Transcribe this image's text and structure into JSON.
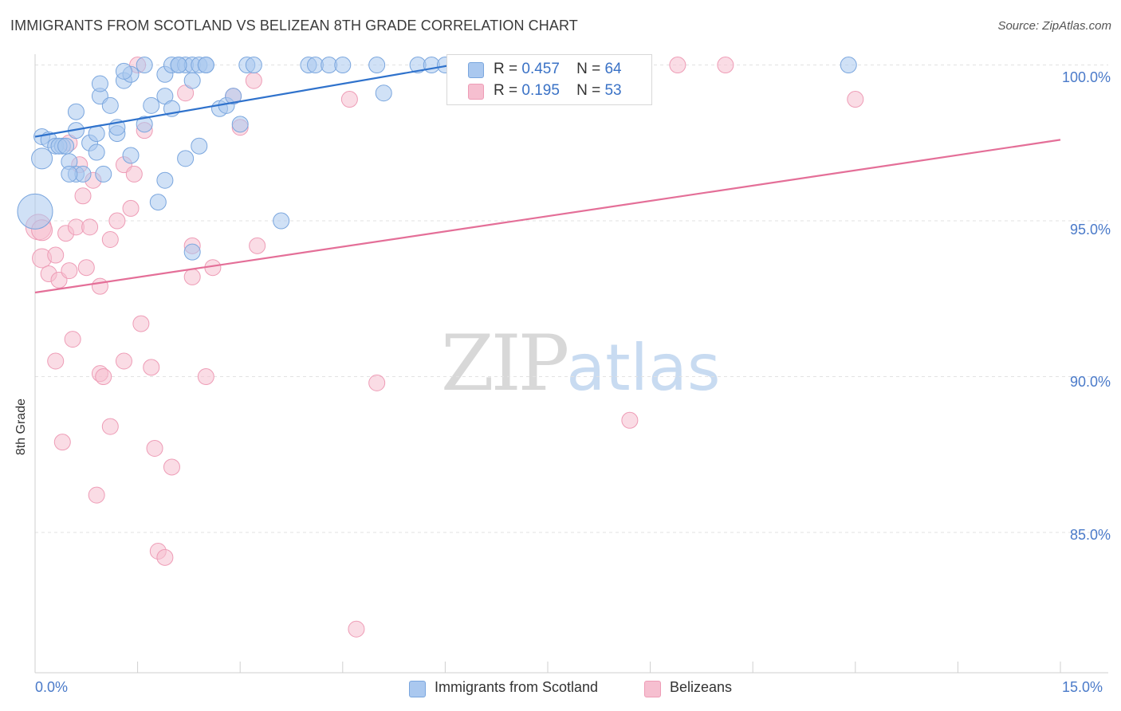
{
  "header": {
    "title": "IMMIGRANTS FROM SCOTLAND VS BELIZEAN 8TH GRADE CORRELATION CHART",
    "source": "Source: ZipAtlas.com"
  },
  "watermark": {
    "zip": "ZIP",
    "atlas": "atlas"
  },
  "colors": {
    "blue_fill": "#aac8ef",
    "blue_stroke": "#7aa6de",
    "blue_line": "#2f72cc",
    "pink_fill": "#f6bfd0",
    "pink_stroke": "#ee9cb6",
    "pink_line": "#e46f98",
    "tick_text": "#4a7ac9",
    "grid": "#e2e2e2"
  },
  "legend": {
    "rows": [
      {
        "r_label": "R =",
        "r_value": "0.457",
        "n_label": "N =",
        "n_value": "64"
      },
      {
        "r_label": "R =",
        "r_value": "0.195",
        "n_label": "N =",
        "n_value": "53"
      }
    ]
  },
  "bottom_legend": {
    "items": [
      {
        "label": "Immigrants from Scotland"
      },
      {
        "label": "Belizeans"
      }
    ]
  },
  "chart_data": {
    "type": "scatter",
    "title": "IMMIGRANTS FROM SCOTLAND VS BELIZEAN 8TH GRADE CORRELATION CHART",
    "xlabel": "",
    "ylabel": "8th Grade",
    "xlim": [
      0,
      15
    ],
    "ylim": [
      80.5,
      100.5
    ],
    "x_tick_labels": [
      "0.0%",
      "15.0%"
    ],
    "y_ticks": [
      100,
      95,
      90,
      85
    ],
    "y_tick_labels": [
      "100.0%",
      "95.0%",
      "90.0%",
      "85.0%"
    ],
    "grid": true,
    "series": [
      {
        "name": "Immigrants from Scotland",
        "R": 0.457,
        "N": 64,
        "trend": {
          "x": [
            0,
            6.1
          ],
          "y": [
            97.7,
            100
          ]
        },
        "points": [
          [
            0.1,
            97.7
          ],
          [
            0.2,
            97.6
          ],
          [
            0.3,
            97.4
          ],
          [
            0.4,
            97.4
          ],
          [
            0.5,
            96.9
          ],
          [
            0.6,
            96.5
          ],
          [
            0.7,
            96.5
          ],
          [
            0.5,
            96.5
          ],
          [
            0.8,
            97.5
          ],
          [
            0.9,
            97.2
          ],
          [
            1.0,
            96.5
          ],
          [
            0.6,
            97.9
          ],
          [
            0.9,
            97.8
          ],
          [
            1.2,
            97.8
          ],
          [
            0.95,
            99.0
          ],
          [
            0.6,
            98.5
          ],
          [
            1.1,
            98.7
          ],
          [
            1.2,
            98.0
          ],
          [
            1.4,
            97.1
          ],
          [
            1.3,
            99.5
          ],
          [
            0.95,
            99.4
          ],
          [
            1.4,
            99.7
          ],
          [
            1.6,
            100.0
          ],
          [
            1.3,
            99.8
          ],
          [
            1.7,
            98.7
          ],
          [
            1.9,
            99.0
          ],
          [
            1.6,
            98.1
          ],
          [
            1.8,
            95.6
          ],
          [
            1.9,
            96.3
          ],
          [
            2.0,
            98.6
          ],
          [
            1.9,
            99.7
          ],
          [
            2.0,
            100.0
          ],
          [
            2.1,
            100.0
          ],
          [
            2.2,
            100.0
          ],
          [
            2.3,
            100.0
          ],
          [
            2.2,
            97.0
          ],
          [
            2.3,
            99.5
          ],
          [
            2.4,
            100.0
          ],
          [
            2.5,
            100.0
          ],
          [
            2.4,
            97.4
          ],
          [
            2.7,
            98.6
          ],
          [
            2.8,
            98.7
          ],
          [
            2.9,
            99.0
          ],
          [
            3.0,
            98.1
          ],
          [
            3.1,
            100.0
          ],
          [
            3.2,
            100.0
          ],
          [
            3.6,
            95.0
          ],
          [
            4.0,
            100.0
          ],
          [
            4.1,
            100.0
          ],
          [
            4.3,
            100.0
          ],
          [
            4.5,
            100.0
          ],
          [
            5.0,
            100.0
          ],
          [
            5.1,
            99.1
          ],
          [
            5.6,
            100.0
          ],
          [
            5.8,
            100.0
          ],
          [
            6.0,
            100.0
          ],
          [
            11.9,
            100.0
          ],
          [
            2.3,
            94.0
          ],
          [
            0.0,
            95.3
          ],
          [
            0.1,
            97.0
          ],
          [
            0.35,
            97.4
          ],
          [
            0.45,
            97.4
          ],
          [
            2.5,
            100.0
          ],
          [
            2.1,
            100.0
          ]
        ],
        "point_sizes": [
          10,
          10,
          10,
          10,
          10,
          10,
          10,
          10,
          10,
          10,
          10,
          10,
          10,
          10,
          10,
          10,
          10,
          10,
          10,
          10,
          10,
          10,
          10,
          10,
          10,
          10,
          10,
          10,
          10,
          10,
          10,
          10,
          10,
          10,
          10,
          10,
          10,
          10,
          10,
          10,
          10,
          10,
          10,
          10,
          10,
          10,
          10,
          10,
          10,
          10,
          10,
          10,
          10,
          10,
          10,
          10,
          10,
          10,
          22,
          13,
          10,
          10,
          10,
          10
        ]
      },
      {
        "name": "Belizeans",
        "R": 0.195,
        "N": 53,
        "trend": {
          "x": [
            0,
            15
          ],
          "y": [
            92.7,
            97.6
          ]
        },
        "points": [
          [
            0.05,
            94.8
          ],
          [
            0.1,
            94.7
          ],
          [
            0.1,
            93.8
          ],
          [
            0.2,
            93.3
          ],
          [
            0.3,
            93.9
          ],
          [
            0.3,
            90.5
          ],
          [
            0.35,
            93.1
          ],
          [
            0.45,
            94.6
          ],
          [
            0.4,
            87.9
          ],
          [
            0.5,
            93.4
          ],
          [
            0.55,
            91.2
          ],
          [
            0.6,
            94.8
          ],
          [
            0.65,
            96.8
          ],
          [
            0.7,
            95.8
          ],
          [
            0.75,
            93.5
          ],
          [
            0.8,
            94.8
          ],
          [
            0.85,
            96.3
          ],
          [
            0.9,
            86.2
          ],
          [
            0.95,
            92.9
          ],
          [
            0.95,
            90.1
          ],
          [
            1.0,
            90.0
          ],
          [
            1.1,
            94.4
          ],
          [
            1.1,
            88.4
          ],
          [
            1.2,
            95.0
          ],
          [
            1.3,
            96.8
          ],
          [
            1.3,
            90.5
          ],
          [
            1.4,
            95.4
          ],
          [
            1.45,
            96.5
          ],
          [
            1.5,
            100.0
          ],
          [
            1.55,
            91.7
          ],
          [
            1.6,
            97.9
          ],
          [
            1.7,
            90.3
          ],
          [
            1.75,
            87.7
          ],
          [
            1.8,
            84.4
          ],
          [
            1.9,
            84.2
          ],
          [
            2.0,
            87.1
          ],
          [
            2.2,
            99.1
          ],
          [
            2.3,
            93.2
          ],
          [
            2.3,
            94.2
          ],
          [
            2.5,
            90.0
          ],
          [
            2.6,
            93.5
          ],
          [
            2.9,
            99.0
          ],
          [
            3.0,
            98.0
          ],
          [
            3.2,
            99.5
          ],
          [
            3.25,
            94.2
          ],
          [
            4.6,
            98.9
          ],
          [
            4.7,
            81.9
          ],
          [
            5.0,
            89.8
          ],
          [
            8.7,
            88.6
          ],
          [
            9.4,
            100.0
          ],
          [
            10.1,
            100.0
          ],
          [
            12.0,
            98.9
          ],
          [
            0.5,
            97.5
          ]
        ],
        "point_sizes": [
          16,
          13,
          12,
          10,
          10,
          10,
          10,
          10,
          10,
          10,
          10,
          10,
          10,
          10,
          10,
          10,
          10,
          10,
          10,
          10,
          10,
          10,
          10,
          10,
          10,
          10,
          10,
          10,
          10,
          10,
          10,
          10,
          10,
          10,
          10,
          10,
          10,
          10,
          10,
          10,
          10,
          10,
          10,
          10,
          10,
          10,
          10,
          10,
          10,
          10,
          10,
          10,
          10
        ]
      }
    ]
  }
}
